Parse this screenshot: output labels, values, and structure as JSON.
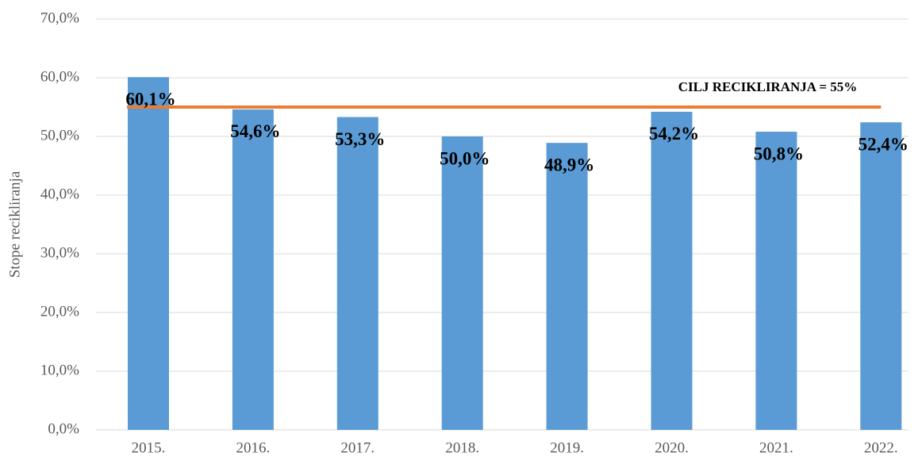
{
  "chart_data": {
    "type": "bar",
    "y_axis_label": "Stope recikliranja",
    "categories": [
      "2015.",
      "2016.",
      "2017.",
      "2018.",
      "2019.",
      "2020.",
      "2021.",
      "2022."
    ],
    "values": [
      60.1,
      54.6,
      53.3,
      50.0,
      48.9,
      54.2,
      50.8,
      52.4
    ],
    "value_labels": [
      "60,1%",
      "54,6%",
      "53,3%",
      "50,0%",
      "48,9%",
      "54,2%",
      "50,8%",
      "52,4%"
    ],
    "color": "#5b9bd5",
    "target": {
      "value": 55,
      "color": "#ed7d31",
      "label": "CILJ RECIKLIRANJA = 55%"
    },
    "ylim": [
      0,
      70
    ],
    "yticks": [
      {
        "value": 0,
        "label": "0,0%"
      },
      {
        "value": 10,
        "label": "10,0%"
      },
      {
        "value": 20,
        "label": "20,0%"
      },
      {
        "value": 30,
        "label": "30,0%"
      },
      {
        "value": 40,
        "label": "40,0%"
      },
      {
        "value": 50,
        "label": "50,0%"
      },
      {
        "value": 60,
        "label": "60,0%"
      },
      {
        "value": 70,
        "label": "70,0%"
      }
    ],
    "grid": true
  }
}
